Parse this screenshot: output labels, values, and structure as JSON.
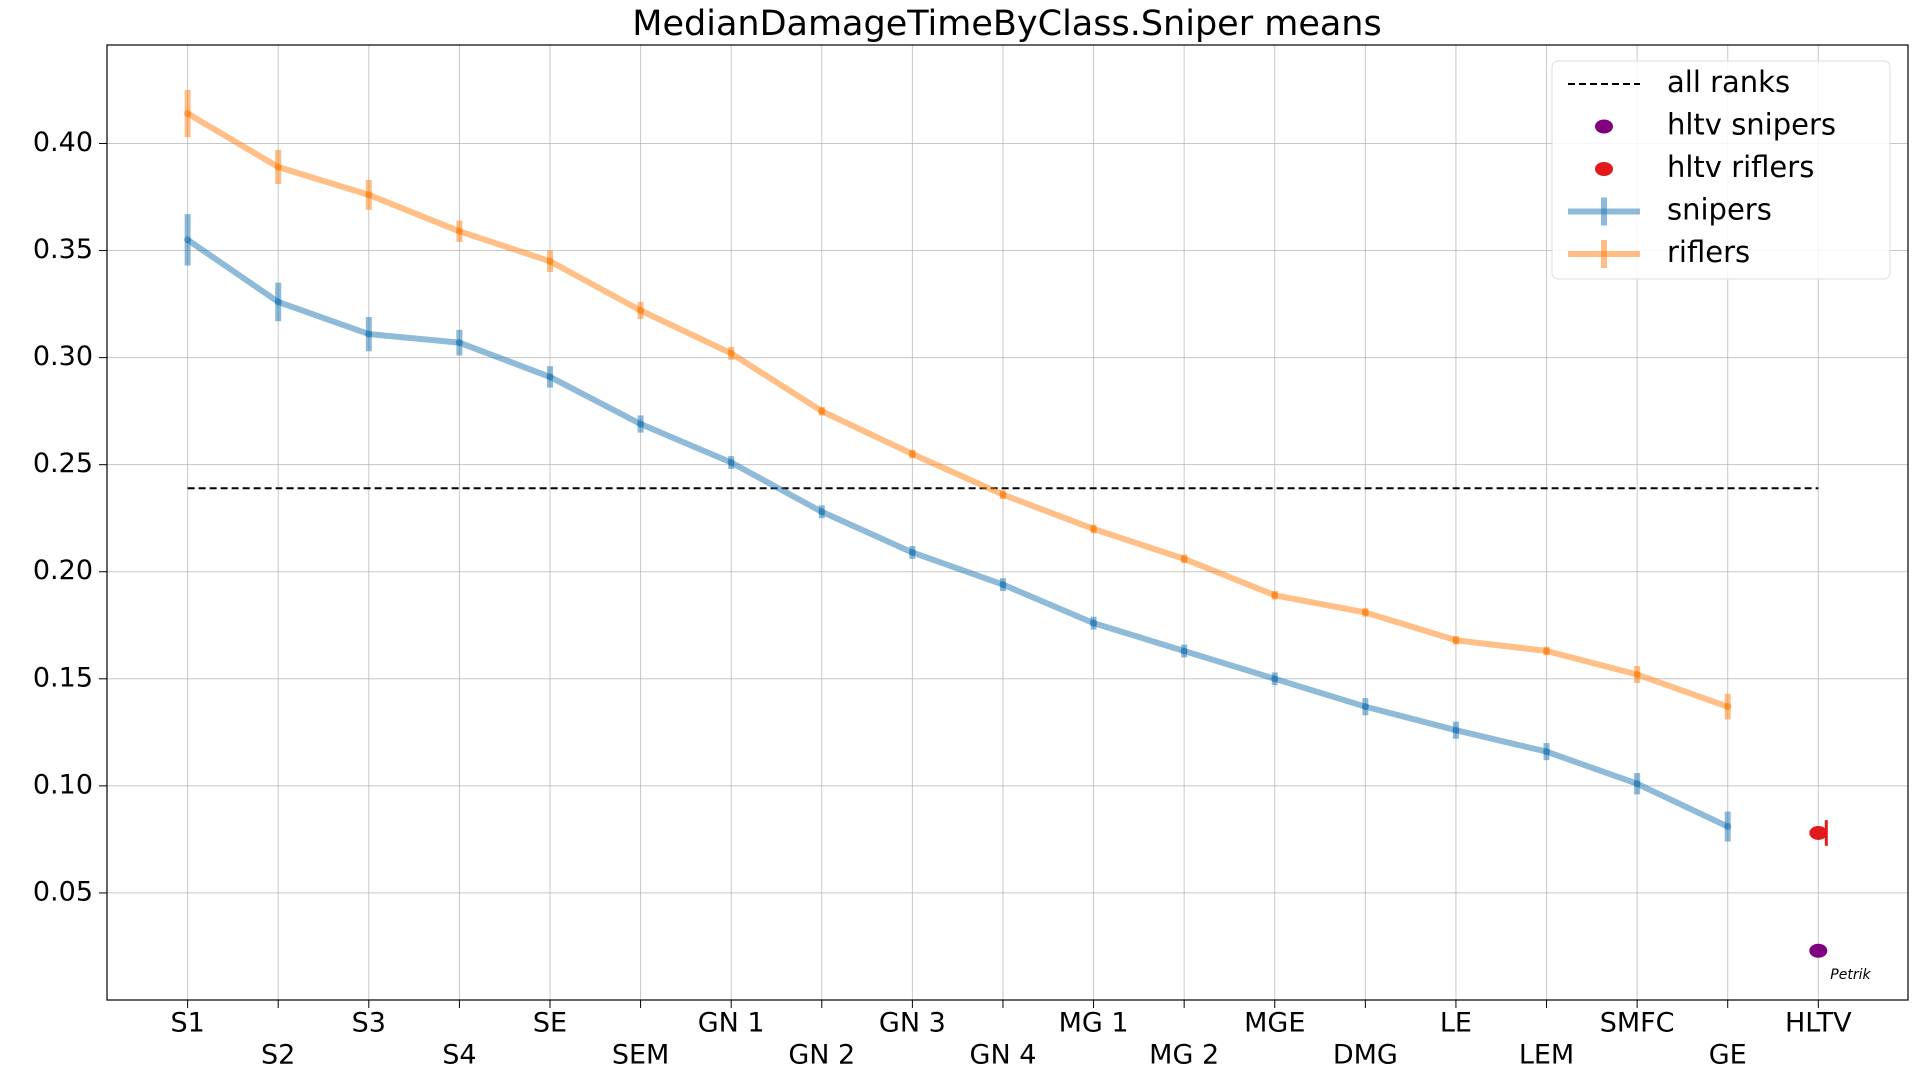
{
  "chart_data": {
    "type": "line",
    "title": "MedianDamageTimeByClass.Sniper means",
    "watermark": "Petrik",
    "categories": [
      "S1",
      "S2",
      "S3",
      "S4",
      "SE",
      "SEM",
      "GN 1",
      "GN 2",
      "GN 3",
      "GN 4",
      "MG 1",
      "MG 2",
      "MGE",
      "DMG",
      "LE",
      "LEM",
      "SMFC",
      "GE",
      "HLTV"
    ],
    "ylim": [
      0,
      0.446
    ],
    "yticks": [
      0.05,
      {
        "value": 0.1,
        "label": "0.10"
      },
      0.15,
      {
        "value": 0.2,
        "label": "0.20"
      },
      0.25,
      {
        "value": 0.3,
        "label": "0.30"
      },
      0.35,
      {
        "value": 0.4,
        "label": "0.40"
      }
    ],
    "grid": true,
    "legend": "upper right",
    "reference_lines": [
      {
        "name": "all ranks",
        "value": 0.239,
        "color": "#000000",
        "style": "dashed"
      }
    ],
    "series": [
      {
        "name": "hltv snipers",
        "kind": "scatter",
        "color": "#800080",
        "values": [
          null,
          null,
          null,
          null,
          null,
          null,
          null,
          null,
          null,
          null,
          null,
          null,
          null,
          null,
          null,
          null,
          null,
          null,
          0.023
        ]
      },
      {
        "name": "hltv riflers",
        "kind": "scatter",
        "color": "#e31a1c",
        "values": [
          null,
          null,
          null,
          null,
          null,
          null,
          null,
          null,
          null,
          null,
          null,
          null,
          null,
          null,
          null,
          null,
          null,
          null,
          0.078
        ],
        "errors": [
          null,
          null,
          null,
          null,
          null,
          null,
          null,
          null,
          null,
          null,
          null,
          null,
          null,
          null,
          null,
          null,
          null,
          null,
          0.006
        ]
      },
      {
        "name": "snipers",
        "kind": "line",
        "color": "#1f77b4",
        "values": [
          0.355,
          0.326,
          0.311,
          0.307,
          0.291,
          0.269,
          0.251,
          0.228,
          0.209,
          0.194,
          0.176,
          0.163,
          0.15,
          0.137,
          0.126,
          0.116,
          0.101,
          0.081,
          null
        ],
        "errors": [
          0.012,
          0.009,
          0.008,
          0.006,
          0.005,
          0.004,
          0.003,
          0.003,
          0.003,
          0.003,
          0.003,
          0.003,
          0.003,
          0.004,
          0.004,
          0.004,
          0.005,
          0.007,
          null
        ]
      },
      {
        "name": "riflers",
        "kind": "line",
        "color": "#ff7f0e",
        "values": [
          0.414,
          0.389,
          0.376,
          0.359,
          0.345,
          0.322,
          0.302,
          0.275,
          0.255,
          0.236,
          0.22,
          0.206,
          0.189,
          0.181,
          0.168,
          0.163,
          0.152,
          0.137,
          null
        ],
        "errors": [
          0.011,
          0.008,
          0.007,
          0.005,
          0.005,
          0.004,
          0.003,
          0.002,
          0.002,
          0.002,
          0.002,
          0.002,
          0.002,
          0.002,
          0.002,
          0.002,
          0.004,
          0.006,
          null
        ]
      }
    ]
  }
}
